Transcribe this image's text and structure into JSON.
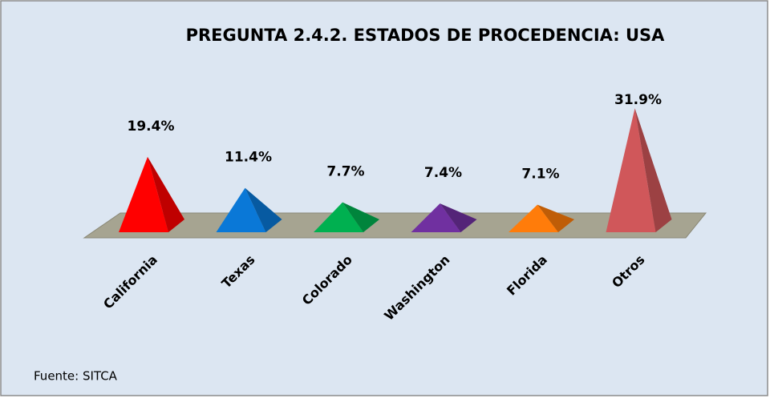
{
  "chart_data": {
    "type": "pyramid",
    "title": "PREGUNTA 2.4.2. ESTADOS DE PROCEDENCIA: USA",
    "categories": [
      "California",
      "Texas",
      "Colorado",
      "Washington",
      "Florida",
      "Otros"
    ],
    "values": [
      19.4,
      11.4,
      7.7,
      7.4,
      7.1,
      31.9
    ],
    "value_labels": [
      "19.4%",
      "11.4%",
      "7.7%",
      "7.4%",
      "7.1%",
      "31.9%"
    ],
    "colors": [
      "#ff0000",
      "#0a78d7",
      "#00b050",
      "#7030a0",
      "#ff7c0a",
      "#d0575a"
    ],
    "source": "Fuente: SITCA"
  }
}
